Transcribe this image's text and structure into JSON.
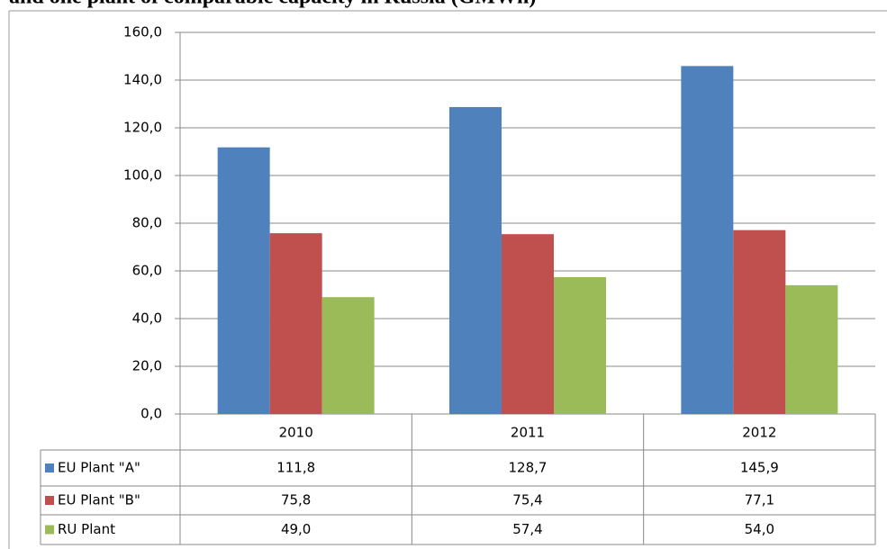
{
  "chart_data": {
    "type": "bar",
    "title": "and one plant of comparable capacity in Russia (GMWh)",
    "categories": [
      "2010",
      "2011",
      "2012"
    ],
    "series": [
      {
        "name": "EU Plant \"A\"",
        "color": "#4f81bd",
        "values": [
          111.8,
          128.7,
          145.9
        ],
        "value_labels": [
          "111,8",
          "128,7",
          "145,9"
        ]
      },
      {
        "name": "EU Plant \"B\"",
        "color": "#c0504d",
        "values": [
          75.8,
          75.4,
          77.1
        ],
        "value_labels": [
          "75,8",
          "75,4",
          "77,1"
        ]
      },
      {
        "name": "RU Plant",
        "color": "#9bbb59",
        "values": [
          49.0,
          57.4,
          54.0
        ],
        "value_labels": [
          "49,0",
          "57,4",
          "54,0"
        ]
      }
    ],
    "ylim": [
      0,
      160
    ],
    "yticks": [
      {
        "value": 0,
        "label": "0,0"
      },
      {
        "value": 20,
        "label": "20,0"
      },
      {
        "value": 40,
        "label": "40,0"
      },
      {
        "value": 60,
        "label": "60,0"
      },
      {
        "value": 80,
        "label": "80,0"
      },
      {
        "value": 100,
        "label": "100,0"
      },
      {
        "value": 120,
        "label": "120,0"
      },
      {
        "value": 140,
        "label": "140,0"
      },
      {
        "value": 160,
        "label": "160,0"
      }
    ],
    "grid": true
  }
}
